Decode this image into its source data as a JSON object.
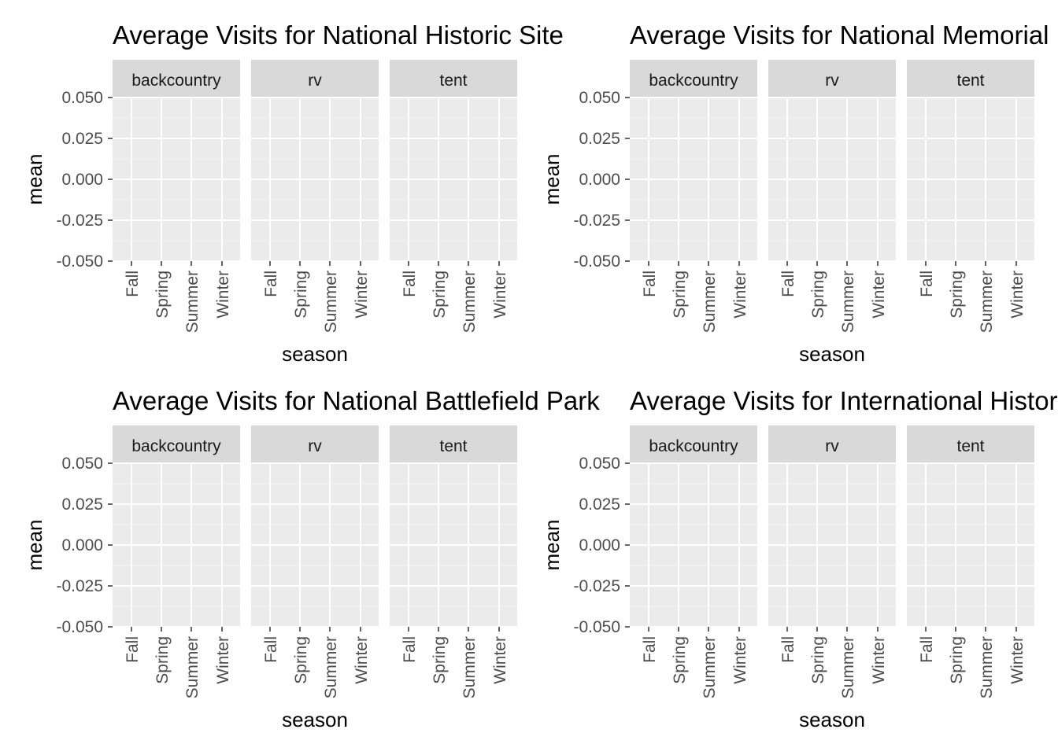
{
  "chart_data": [
    {
      "type": "bar",
      "title": "Average Visits for National Historic Site",
      "xlabel": "season",
      "ylabel": "mean",
      "facets": [
        "backcountry",
        "rv",
        "tent"
      ],
      "categories": [
        "Fall",
        "Spring",
        "Summer",
        "Winter"
      ],
      "ylim": [
        -0.05,
        0.05
      ],
      "yticks": [
        "0.050",
        "0.025",
        "0.000",
        "-0.025",
        "-0.050"
      ],
      "series": [],
      "grid": true
    },
    {
      "type": "bar",
      "title": "Average Visits for National Memorial",
      "xlabel": "season",
      "ylabel": "mean",
      "facets": [
        "backcountry",
        "rv",
        "tent"
      ],
      "categories": [
        "Fall",
        "Spring",
        "Summer",
        "Winter"
      ],
      "ylim": [
        -0.05,
        0.05
      ],
      "yticks": [
        "0.050",
        "0.025",
        "0.000",
        "-0.025",
        "-0.050"
      ],
      "series": [],
      "grid": true
    },
    {
      "type": "bar",
      "title": "Average Visits for National Battlefield Park",
      "xlabel": "season",
      "ylabel": "mean",
      "facets": [
        "backcountry",
        "rv",
        "tent"
      ],
      "categories": [
        "Fall",
        "Spring",
        "Summer",
        "Winter"
      ],
      "ylim": [
        -0.05,
        0.05
      ],
      "yticks": [
        "0.050",
        "0.025",
        "0.000",
        "-0.025",
        "-0.050"
      ],
      "series": [],
      "grid": true
    },
    {
      "type": "bar",
      "title": "Average Visits for International Historic Site",
      "xlabel": "season",
      "ylabel": "mean",
      "facets": [
        "backcountry",
        "rv",
        "tent"
      ],
      "categories": [
        "Fall",
        "Spring",
        "Summer",
        "Winter"
      ],
      "ylim": [
        -0.05,
        0.05
      ],
      "yticks": [
        "0.050",
        "0.025",
        "0.000",
        "-0.025",
        "-0.050"
      ],
      "series": [],
      "grid": true
    }
  ],
  "colors": {
    "panel_bg": "#ebebeb",
    "strip_bg": "#d9d9d9",
    "grid_major": "#ffffff",
    "grid_minor": "#f5f5f5",
    "tick": "#333333"
  }
}
